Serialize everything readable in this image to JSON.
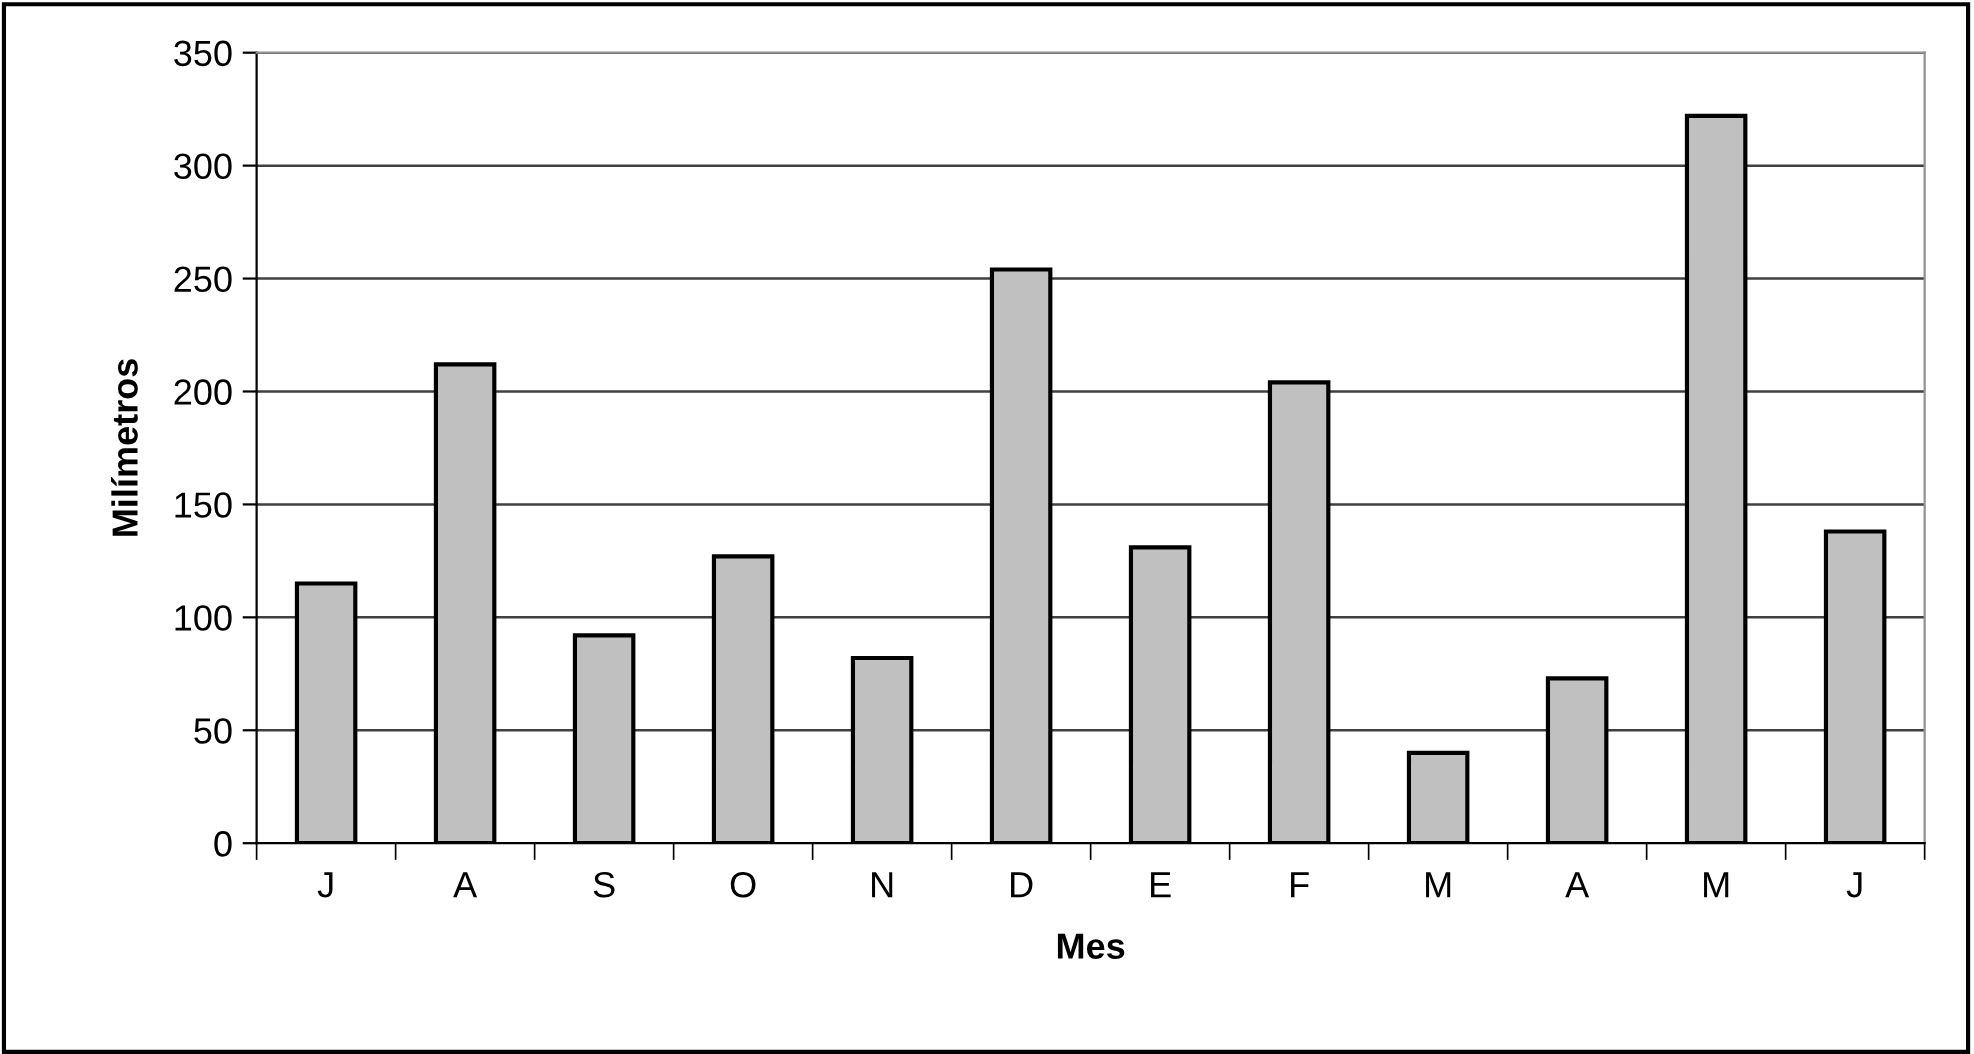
{
  "chart_data": {
    "type": "bar",
    "xlabel": "Mes",
    "ylabel": "Milímetros",
    "categories": [
      "J",
      "A",
      "S",
      "O",
      "N",
      "D",
      "E",
      "F",
      "M",
      "A",
      "M",
      "J"
    ],
    "values": [
      115,
      212,
      92,
      127,
      82,
      254,
      131,
      204,
      40,
      73,
      322,
      138
    ],
    "color": "#c0c0c0",
    "ylim": [
      0,
      350
    ],
    "yticks": [
      0,
      50,
      100,
      150,
      200,
      250,
      300,
      350
    ],
    "grid": "y",
    "legend": false
  }
}
